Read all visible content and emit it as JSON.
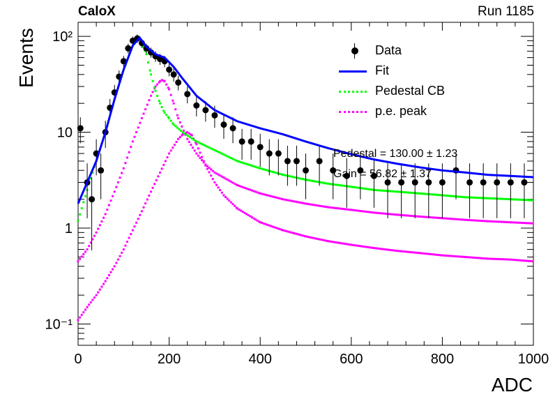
{
  "header": {
    "experiment": "CaloX",
    "run": "Run 1185"
  },
  "stats": {
    "pedestal": "Pedestal = 130.00 ± 1.23",
    "gain": "Gain = 56.82 ± 1.37"
  },
  "chart_data": {
    "type": "scatter",
    "title": "",
    "xlabel": "ADC",
    "ylabel": "Events",
    "xlim": [
      0,
      1000
    ],
    "ylim": [
      0.06,
      140
    ],
    "yscale": "log",
    "grid": false,
    "legend_position": "top-right",
    "x_ticks": [
      0,
      200,
      400,
      600,
      800,
      1000
    ],
    "x_tick_labels": [
      "0",
      "200",
      "400",
      "600",
      "800",
      "1000"
    ],
    "y_ticks": [
      0.1,
      1,
      10,
      100
    ],
    "y_tick_labels": [
      "10⁻¹",
      "1",
      "10",
      "10²"
    ],
    "colors": {
      "data": "#000000",
      "fit": "#0000ff",
      "pedestal": "#00ff00",
      "pe_peak": "#ff00ff"
    },
    "legend": [
      {
        "label": "Data",
        "style": "marker"
      },
      {
        "label": "Fit",
        "style": "solid"
      },
      {
        "label": "Pedestal CB",
        "style": "dotted"
      },
      {
        "label": "p.e. peak",
        "style": "dotted"
      }
    ],
    "data": {
      "x": [
        5,
        20,
        30,
        40,
        50,
        60,
        70,
        80,
        90,
        100,
        110,
        120,
        130,
        140,
        150,
        160,
        170,
        180,
        190,
        200,
        210,
        220,
        240,
        260,
        280,
        300,
        320,
        340,
        360,
        380,
        400,
        420,
        440,
        460,
        480,
        500,
        530,
        560,
        590,
        620,
        650,
        680,
        710,
        740,
        770,
        800,
        830,
        860,
        890,
        920,
        950,
        980
      ],
      "y": [
        11,
        3,
        2,
        6,
        4,
        10,
        18,
        26,
        38,
        55,
        75,
        90,
        95,
        85,
        75,
        68,
        62,
        58,
        55,
        45,
        40,
        33,
        25,
        19,
        17,
        15,
        12,
        11,
        8,
        8,
        7,
        6,
        6,
        5,
        5,
        4,
        5,
        4,
        3.5,
        4,
        3.5,
        3,
        3,
        3,
        3,
        3,
        4,
        3,
        3,
        3,
        3,
        3
      ]
    },
    "fit": {
      "x": [
        0,
        20,
        40,
        60,
        80,
        100,
        120,
        135,
        150,
        170,
        190,
        210,
        230,
        260,
        300,
        350,
        400,
        450,
        500,
        550,
        600,
        650,
        700,
        750,
        800,
        850,
        900,
        950,
        1000
      ],
      "y": [
        1.8,
        3,
        5,
        10,
        22,
        45,
        80,
        97,
        78,
        65,
        60,
        48,
        36,
        24,
        17,
        13,
        11,
        9.5,
        8,
        6.8,
        5.9,
        5.2,
        4.7,
        4.3,
        4,
        3.8,
        3.6,
        3.5,
        3.4
      ]
    },
    "pedestal": {
      "x": [
        0,
        20,
        40,
        60,
        80,
        100,
        120,
        135,
        150,
        160,
        170,
        180,
        190,
        200,
        210,
        230,
        260,
        300,
        350,
        400,
        450,
        500,
        550,
        600,
        650,
        700,
        750,
        800,
        850,
        900,
        950,
        1000
      ],
      "y": [
        1.2,
        2.5,
        5,
        10,
        22,
        45,
        80,
        97,
        65,
        40,
        27,
        20,
        16,
        14,
        12,
        10,
        8,
        6.5,
        5,
        4.2,
        3.6,
        3.2,
        2.9,
        2.7,
        2.5,
        2.4,
        2.3,
        2.2,
        2.1,
        2.05,
        2,
        1.95
      ]
    },
    "pe_peak_1": {
      "x": [
        0,
        20,
        40,
        60,
        80,
        100,
        120,
        140,
        160,
        170,
        180,
        185,
        190,
        200,
        210,
        220,
        240,
        260,
        280,
        300,
        350,
        400,
        450,
        500,
        550,
        600,
        650,
        700,
        750,
        800,
        850,
        900,
        950,
        1000
      ],
      "y": [
        0.45,
        0.6,
        0.9,
        1.4,
        2.4,
        4.2,
        8,
        14,
        24,
        30,
        34,
        35,
        34,
        28,
        20,
        14,
        8.5,
        6,
        4.6,
        3.8,
        2.8,
        2.3,
        2,
        1.8,
        1.65,
        1.55,
        1.45,
        1.38,
        1.32,
        1.27,
        1.22,
        1.18,
        1.15,
        1.12
      ]
    },
    "pe_peak_2": {
      "x": [
        0,
        20,
        40,
        60,
        80,
        100,
        120,
        140,
        160,
        180,
        200,
        220,
        230,
        240,
        250,
        260,
        280,
        300,
        320,
        350,
        400,
        450,
        500,
        550,
        600,
        650,
        700,
        750,
        800,
        850,
        900,
        950,
        1000
      ],
      "y": [
        0.11,
        0.15,
        0.2,
        0.28,
        0.4,
        0.6,
        0.95,
        1.5,
        2.4,
        3.8,
        6,
        8.5,
        9.5,
        10,
        9.3,
        7.5,
        4.5,
        3,
        2.2,
        1.6,
        1.15,
        0.95,
        0.82,
        0.73,
        0.67,
        0.62,
        0.58,
        0.55,
        0.52,
        0.5,
        0.48,
        0.47,
        0.45
      ]
    }
  }
}
